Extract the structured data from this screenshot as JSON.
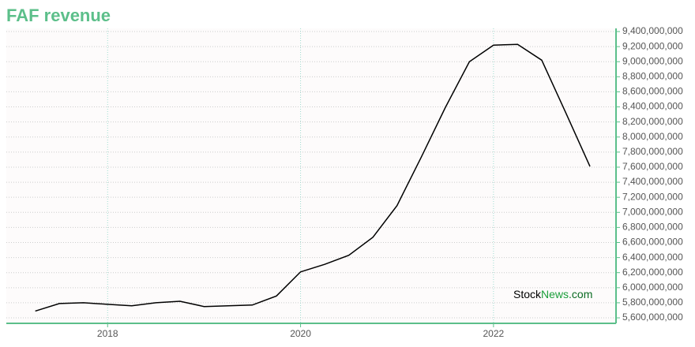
{
  "chart_data": {
    "type": "line",
    "title": "FAF revenue",
    "x": [
      2017.25,
      2017.5,
      2017.75,
      2018.0,
      2018.25,
      2018.5,
      2018.75,
      2019.0,
      2019.25,
      2019.5,
      2019.75,
      2020.0,
      2020.25,
      2020.5,
      2020.75,
      2021.0,
      2021.25,
      2021.5,
      2021.75,
      2022.0,
      2022.25,
      2022.5,
      2022.75,
      2023.0
    ],
    "series": [
      {
        "color": "#000000",
        "values": [
          5690000000,
          5790000000,
          5800000000,
          5780000000,
          5760000000,
          5800000000,
          5820000000,
          5750000000,
          5760000000,
          5770000000,
          5890000000,
          6210000000,
          6310000000,
          6430000000,
          6670000000,
          7090000000,
          7730000000,
          8390000000,
          9000000000,
          9220000000,
          9230000000,
          9020000000,
          8320000000,
          7610000000
        ]
      }
    ],
    "xlim": [
      2016.95,
      2023.27
    ],
    "xticks": [
      2018,
      2020,
      2022
    ],
    "ylim": [
      5527000000,
      9442000000
    ],
    "yticks": [
      {
        "value": 5600000000,
        "label": "5,600,000,000"
      },
      {
        "value": 5800000000,
        "label": "5,800,000,000"
      },
      {
        "value": 6000000000,
        "label": "6,000,000,000"
      },
      {
        "value": 6200000000,
        "label": "6,200,000,000"
      },
      {
        "value": 6400000000,
        "label": "6,400,000,000"
      },
      {
        "value": 6600000000,
        "label": "6,600,000,000"
      },
      {
        "value": 6800000000,
        "label": "6,800,000,000"
      },
      {
        "value": 7000000000,
        "label": "7,000,000,000"
      },
      {
        "value": 7200000000,
        "label": "7,200,000,000"
      },
      {
        "value": 7400000000,
        "label": "7,400,000,000"
      },
      {
        "value": 7600000000,
        "label": "7,600,000,000"
      },
      {
        "value": 7800000000,
        "label": "7,800,000,000"
      },
      {
        "value": 8000000000,
        "label": "8,000,000,000"
      },
      {
        "value": 8200000000,
        "label": "8,200,000,000"
      },
      {
        "value": 8400000000,
        "label": "8,400,000,000"
      },
      {
        "value": 8600000000,
        "label": "8,600,000,000"
      },
      {
        "value": 8800000000,
        "label": "8,800,000,000"
      },
      {
        "value": 9000000000,
        "label": "9,000,000,000"
      },
      {
        "value": 9200000000,
        "label": "9,200,000,000"
      },
      {
        "value": 9400000000,
        "label": "9,400,000,000"
      }
    ],
    "grid": true,
    "watermark": [
      "Stock",
      "News",
      ".com"
    ]
  }
}
